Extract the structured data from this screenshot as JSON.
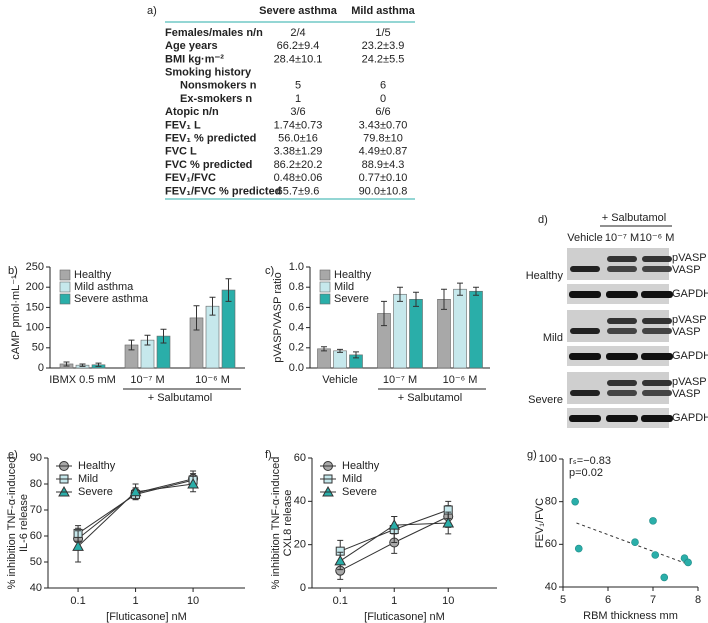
{
  "table_panel": {
    "label": "a)",
    "header": [
      "Severe asthma",
      "Mild asthma"
    ],
    "rows": [
      [
        "Females/males n/n",
        "2/4",
        "1/5"
      ],
      [
        "Age years",
        "66.2±9.4",
        "23.2±3.9"
      ],
      [
        "BMI kg·m⁻²",
        "28.4±10.1",
        "24.2±5.5"
      ],
      [
        "Smoking history"
      ],
      [
        "Nonsmokers n",
        "5",
        "6"
      ],
      [
        "Ex-smokers n",
        "1",
        "0"
      ],
      [
        "Atopic n/n",
        "3/6",
        "6/6"
      ],
      [
        "FEV₁ L",
        "1.74±0.73",
        "3.43±0.70"
      ],
      [
        "FEV₁ % predicted",
        "56.0±16",
        "79.8±10"
      ],
      [
        "FVC L",
        "3.38±1.29",
        "4.49±0.87"
      ],
      [
        "FVC % predicted",
        "86.2±20.2",
        "88.9±4.3"
      ],
      [
        "FEV₁/FVC",
        "0.48±0.06",
        "0.77±0.10"
      ],
      [
        "FEV₁/FVC % predicted",
        "65.7±9.6",
        "90.0±10.8"
      ]
    ]
  },
  "blot_panel": {
    "label": "d)",
    "treatment": "+ Salbutamol",
    "lanes": [
      "Vehicle",
      "10⁻⁷ M",
      "10⁻⁶ M"
    ],
    "groups": [
      {
        "name": "Healthy",
        "bands": [
          "pVASP",
          "VASP",
          "GAPDH"
        ]
      },
      {
        "name": "Mild",
        "bands": [
          "pVASP",
          "VASP",
          "GAPDH"
        ]
      },
      {
        "name": "Severe",
        "bands": [
          "pVASP",
          "VASP",
          "GAPDH"
        ]
      }
    ]
  },
  "chart_data": [
    {
      "type": "bar",
      "panel_label": "b)",
      "y_label": "cAMP pmol·mL⁻¹",
      "categories": [
        "IBMX 0.5 mM",
        "10⁻⁷ M",
        "10⁻⁶ M"
      ],
      "group_label": "+ Salbutamol",
      "series": [
        {
          "name": "Healthy",
          "color": "#a8a8a8",
          "values": [
            10,
            57,
            124
          ],
          "errors": [
            5,
            12,
            30
          ]
        },
        {
          "name": "Mild asthma",
          "color": "#c6e8ec",
          "values": [
            7,
            69,
            153
          ],
          "errors": [
            3,
            12,
            22
          ]
        },
        {
          "name": "Severe asthma",
          "color": "#2aaea9",
          "values": [
            8,
            79,
            193
          ],
          "errors": [
            4,
            17,
            28
          ]
        }
      ],
      "ylim": [
        0,
        250
      ],
      "yticks": [
        0,
        50,
        100,
        150,
        200,
        250
      ],
      "legend": "upper left"
    },
    {
      "type": "bar",
      "panel_label": "c)",
      "y_label": "pVASP/VASP ratio",
      "categories": [
        "Vehicle",
        "10⁻⁷ M",
        "10⁻⁶ M"
      ],
      "group_label": "+ Salbutamol",
      "series": [
        {
          "name": "Healthy",
          "color": "#a8a8a8",
          "values": [
            0.19,
            0.54,
            0.68
          ],
          "errors": [
            0.02,
            0.12,
            0.1
          ]
        },
        {
          "name": "Mild",
          "color": "#c6e8ec",
          "values": [
            0.17,
            0.73,
            0.78
          ],
          "errors": [
            0.015,
            0.07,
            0.06
          ]
        },
        {
          "name": "Severe",
          "color": "#2aaea9",
          "values": [
            0.13,
            0.68,
            0.76
          ],
          "errors": [
            0.03,
            0.07,
            0.04
          ]
        }
      ],
      "ylim": [
        0,
        1
      ],
      "yticks": [
        {
          "value": 0,
          "label": "0.0"
        },
        0.2,
        0.4,
        0.6,
        0.8,
        {
          "value": 1,
          "label": "1.0"
        }
      ],
      "legend": "upper left"
    },
    {
      "type": "line",
      "panel_label": "e)",
      "y_label": [
        "% inhibition TNF-α-induced",
        "IL-6 release"
      ],
      "x_label": "[Fluticasone] nM",
      "x": [
        0.1,
        1,
        10
      ],
      "xscale": "log",
      "xlim": [
        0.03,
        80
      ],
      "xticks": [
        0.1,
        1,
        10
      ],
      "series": [
        {
          "name": "Healthy",
          "color": "#a8a8a8",
          "marker": "circle",
          "values": [
            59,
            76.5,
            82
          ],
          "errors": [
            4,
            2,
            3
          ]
        },
        {
          "name": "Mild",
          "color": "#c6e8ec",
          "marker": "square",
          "values": [
            61,
            76,
            81.5
          ],
          "errors": [
            3,
            2,
            2.5
          ]
        },
        {
          "name": "Severe",
          "color": "#2aaea9",
          "marker": "triangle",
          "values": [
            56,
            77,
            80
          ],
          "errors": [
            6,
            3,
            3
          ]
        }
      ],
      "ylim": [
        40,
        90
      ],
      "yticks": [
        40,
        50,
        60,
        70,
        80,
        90
      ],
      "legend": "upper left"
    },
    {
      "type": "line",
      "panel_label": "f)",
      "y_label": [
        "% inhibition TNF-α-induced",
        "CXL8 release"
      ],
      "x_label": "[Fluticasone] nM",
      "x": [
        0.1,
        1,
        10
      ],
      "xscale": "log",
      "xlim": [
        0.03,
        80
      ],
      "xticks": [
        0.1,
        1,
        10
      ],
      "series": [
        {
          "name": "Healthy",
          "color": "#a8a8a8",
          "marker": "circle",
          "values": [
            8,
            21,
            33
          ],
          "errors": [
            4,
            5,
            5
          ]
        },
        {
          "name": "Mild",
          "color": "#c6e8ec",
          "marker": "square",
          "values": [
            17,
            27,
            36
          ],
          "errors": [
            5,
            6,
            4
          ]
        },
        {
          "name": "Severe",
          "color": "#2aaea9",
          "marker": "triangle",
          "values": [
            12.5,
            29,
            30
          ],
          "errors": [
            4,
            4,
            5
          ]
        }
      ],
      "ylim": [
        0,
        60
      ],
      "yticks": [
        0,
        20,
        40,
        60
      ],
      "legend": "upper left"
    },
    {
      "type": "scatter",
      "panel_label": "g)",
      "y_label": "FEV₁/FVC",
      "x_label": "RBM thickness mm",
      "x": [
        5.27,
        5.35,
        6.6,
        7.0,
        7.05,
        7.25,
        7.7,
        7.78
      ],
      "values": [
        80,
        58,
        61,
        71,
        55,
        44.5,
        53.5,
        51.5
      ],
      "color": "#2aaea9",
      "xlim": [
        5,
        8
      ],
      "xticks": [
        5,
        6,
        7,
        8
      ],
      "ylim": [
        40,
        100
      ],
      "yticks": [
        40,
        60,
        80,
        100
      ],
      "annotations": [
        "rₛ=−0.83",
        "p=0.02"
      ],
      "trendline": {
        "x": [
          5.3,
          7.8
        ],
        "values": [
          70,
          50.5
        ]
      }
    }
  ]
}
